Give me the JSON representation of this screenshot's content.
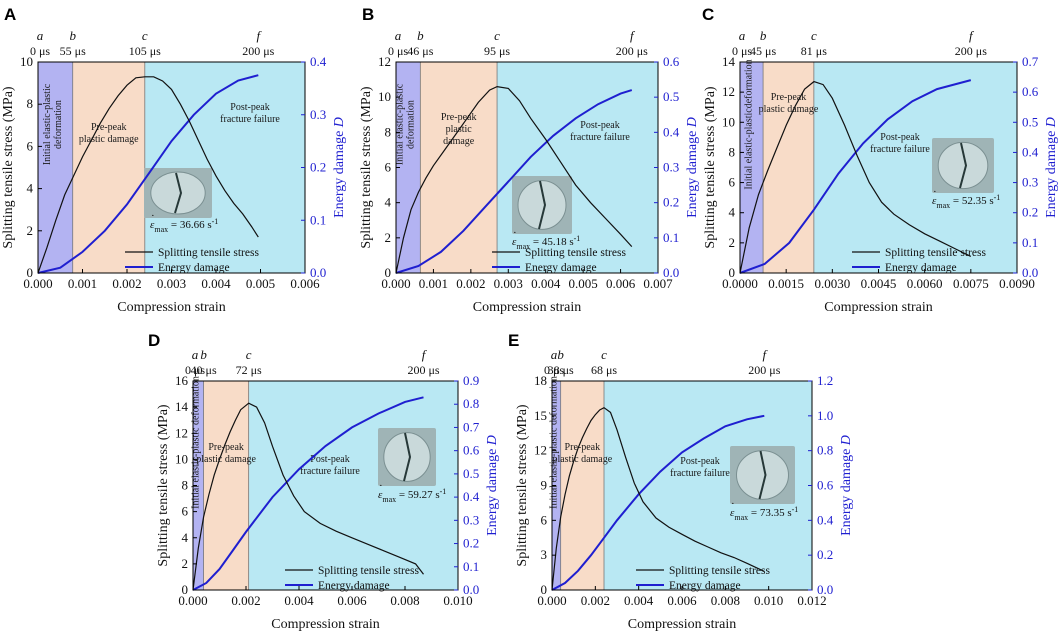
{
  "legend": {
    "stress": "Splitting tensile stress",
    "damage": "Energy damage"
  },
  "labels": {
    "xlabel": "Compression strain",
    "ylabel": "Splitting tensile stress (MPa)",
    "y2label": "Energy damage ",
    "y2italic": "D"
  },
  "colors": {
    "elastic": "#b3b3f2",
    "prepeak": "#f8dcc8",
    "postpeak": "#b9e8f3",
    "stress": "#111111",
    "damage": "#1f1fd0"
  },
  "chart_data": [
    {
      "panel": "A",
      "type": "line",
      "xlim": [
        0,
        0.006
      ],
      "xticks": [
        0,
        0.001,
        0.002,
        0.003,
        0.004,
        0.005,
        0.006
      ],
      "xtick_labels": [
        "0.000",
        "0.001",
        "0.002",
        "0.003",
        "0.004",
        "0.005",
        "0.006"
      ],
      "ylim": [
        0,
        10
      ],
      "yticks": [
        0,
        2,
        4,
        6,
        8,
        10
      ],
      "ytick_labels": [
        "0",
        "2",
        "4",
        "6",
        "8",
        "10"
      ],
      "y2lim": [
        0,
        0.4
      ],
      "y2ticks": [
        0,
        0.1,
        0.2,
        0.3,
        0.4
      ],
      "y2tick_labels": [
        "0.0",
        "0.1",
        "0.2",
        "0.3",
        "0.4"
      ],
      "phases": [
        {
          "letter": "a",
          "time": "0 μs",
          "strain": 0.0
        },
        {
          "letter": "b",
          "time": "55 μs",
          "strain": 0.00078
        },
        {
          "letter": "c",
          "time": "105 μs",
          "strain": 0.0024
        },
        {
          "letter": "f",
          "time": "200 μs",
          "strain": 0.00495
        }
      ],
      "regions": {
        "elastic": [
          "Initial elastic-plastic",
          "deformation"
        ],
        "prepeak": [
          "Pre-peak",
          "plastic damage"
        ],
        "postpeak": [
          "Post-peak",
          "fracture failure"
        ]
      },
      "strain_rate": "36.66",
      "stress_series": {
        "name": "Splitting tensile stress",
        "x": [
          0,
          0.0002,
          0.0004,
          0.0006,
          0.0008,
          0.001,
          0.0012,
          0.0014,
          0.0016,
          0.0018,
          0.002,
          0.0022,
          0.0024,
          0.0026,
          0.0028,
          0.003,
          0.0032,
          0.0034,
          0.0036,
          0.0038,
          0.004,
          0.0042,
          0.0044,
          0.0046,
          0.0048,
          0.00495
        ],
        "y": [
          0,
          1.2,
          2.5,
          3.7,
          4.6,
          5.5,
          6.3,
          7.1,
          7.8,
          8.4,
          8.9,
          9.25,
          9.3,
          9.3,
          9.1,
          8.7,
          8.0,
          7.2,
          6.3,
          5.4,
          4.6,
          3.9,
          3.3,
          2.8,
          2.2,
          1.7
        ]
      },
      "damage_series": {
        "name": "Energy damage",
        "x": [
          0,
          0.0005,
          0.001,
          0.0015,
          0.002,
          0.0025,
          0.003,
          0.0035,
          0.004,
          0.0045,
          0.00495
        ],
        "y": [
          0,
          0.01,
          0.04,
          0.08,
          0.13,
          0.19,
          0.25,
          0.3,
          0.34,
          0.365,
          0.375
        ]
      }
    },
    {
      "panel": "B",
      "type": "line",
      "xlim": [
        0,
        0.007
      ],
      "xticks": [
        0,
        0.001,
        0.002,
        0.003,
        0.004,
        0.005,
        0.006,
        0.007
      ],
      "xtick_labels": [
        "0.000",
        "0.001",
        "0.002",
        "0.003",
        "0.004",
        "0.005",
        "0.006",
        "0.007"
      ],
      "ylim": [
        0,
        12
      ],
      "yticks": [
        0,
        2,
        4,
        6,
        8,
        10,
        12
      ],
      "ytick_labels": [
        "0",
        "2",
        "4",
        "6",
        "8",
        "10",
        "12"
      ],
      "y2lim": [
        0,
        0.6
      ],
      "y2ticks": [
        0,
        0.1,
        0.2,
        0.3,
        0.4,
        0.5,
        0.6
      ],
      "y2tick_labels": [
        "0.0",
        "0.1",
        "0.2",
        "0.3",
        "0.4",
        "0.5",
        "0.6"
      ],
      "phases": [
        {
          "letter": "a",
          "time": "0 μs",
          "strain": 0.0
        },
        {
          "letter": "b",
          "time": "46 μs",
          "strain": 0.00065
        },
        {
          "letter": "c",
          "time": "95 μs",
          "strain": 0.0027
        },
        {
          "letter": "f",
          "time": "200 μs",
          "strain": 0.0063
        }
      ],
      "regions": {
        "elastic": [
          "Initial elastic-plastic",
          "deformation"
        ],
        "prepeak": [
          "Pre-peak",
          "plastic",
          "damage"
        ],
        "postpeak": [
          "Post-peak",
          "fracture failure"
        ]
      },
      "strain_rate": "45.18",
      "stress_series": {
        "name": "Splitting tensile stress",
        "x": [
          0,
          0.0002,
          0.0004,
          0.0006,
          0.0008,
          0.001,
          0.0013,
          0.0016,
          0.0019,
          0.0022,
          0.0025,
          0.0027,
          0.003,
          0.0033,
          0.0036,
          0.004,
          0.0044,
          0.0048,
          0.0052,
          0.0056,
          0.006,
          0.0063
        ],
        "y": [
          0,
          2.0,
          3.6,
          4.6,
          5.4,
          6.1,
          7.0,
          7.9,
          8.8,
          9.7,
          10.4,
          10.6,
          10.5,
          9.8,
          8.8,
          7.6,
          6.3,
          5.0,
          4.0,
          3.1,
          2.2,
          1.5
        ]
      },
      "damage_series": {
        "name": "Energy damage",
        "x": [
          0,
          0.0006,
          0.0012,
          0.0018,
          0.0024,
          0.003,
          0.0036,
          0.0042,
          0.0048,
          0.0054,
          0.006,
          0.0063
        ],
        "y": [
          0,
          0.02,
          0.06,
          0.12,
          0.19,
          0.26,
          0.33,
          0.39,
          0.44,
          0.48,
          0.51,
          0.52
        ]
      }
    },
    {
      "panel": "C",
      "type": "line",
      "xlim": [
        0,
        0.009
      ],
      "xticks": [
        0,
        0.0015,
        0.003,
        0.0045,
        0.006,
        0.0075,
        0.009
      ],
      "xtick_labels": [
        "0.0000",
        "0.0015",
        "0.0030",
        "0.0045",
        "0.0060",
        "0.0075",
        "0.0090"
      ],
      "ylim": [
        0,
        14
      ],
      "yticks": [
        0,
        2,
        4,
        6,
        8,
        10,
        12,
        14
      ],
      "ytick_labels": [
        "0",
        "2",
        "4",
        "6",
        "8",
        "10",
        "12",
        "14"
      ],
      "y2lim": [
        0,
        0.7
      ],
      "y2ticks": [
        0,
        0.1,
        0.2,
        0.3,
        0.4,
        0.5,
        0.6,
        0.7
      ],
      "y2tick_labels": [
        "0.0",
        "0.1",
        "0.2",
        "0.3",
        "0.4",
        "0.5",
        "0.6",
        "0.7"
      ],
      "phases": [
        {
          "letter": "a",
          "time": "0 μs",
          "strain": 0.0
        },
        {
          "letter": "b",
          "time": "45 μs",
          "strain": 0.00075
        },
        {
          "letter": "c",
          "time": "81 μs",
          "strain": 0.0024
        },
        {
          "letter": "f",
          "time": "200 μs",
          "strain": 0.0075
        }
      ],
      "regions": {
        "elastic": [
          "Initial elastic-plasticdeformation"
        ],
        "prepeak": [
          "Pre-peak",
          "plastic damage"
        ],
        "postpeak": [
          "Post-peak",
          "fracture failure"
        ]
      },
      "strain_rate": "52.35",
      "stress_series": {
        "name": "Splitting tensile stress",
        "x": [
          0,
          0.0003,
          0.0006,
          0.0009,
          0.0012,
          0.0015,
          0.0018,
          0.0021,
          0.0024,
          0.0027,
          0.003,
          0.0034,
          0.0038,
          0.0042,
          0.0046,
          0.005,
          0.0055,
          0.006,
          0.0065,
          0.007,
          0.0075
        ],
        "y": [
          0,
          3.0,
          5.2,
          6.8,
          8.3,
          9.8,
          11.1,
          12.2,
          12.7,
          12.5,
          11.6,
          9.8,
          7.8,
          6.0,
          4.7,
          3.9,
          3.2,
          2.6,
          2.1,
          1.6,
          1.1
        ]
      },
      "damage_series": {
        "name": "Energy damage",
        "x": [
          0,
          0.0008,
          0.0016,
          0.0024,
          0.0032,
          0.004,
          0.0048,
          0.0056,
          0.0064,
          0.0075
        ],
        "y": [
          0,
          0.03,
          0.1,
          0.21,
          0.33,
          0.43,
          0.51,
          0.57,
          0.61,
          0.64
        ]
      }
    },
    {
      "panel": "D",
      "type": "line",
      "xlim": [
        0,
        0.01
      ],
      "xticks": [
        0,
        0.002,
        0.004,
        0.006,
        0.008,
        0.01
      ],
      "xtick_labels": [
        "0.000",
        "0.002",
        "0.004",
        "0.006",
        "0.008",
        "0.010"
      ],
      "ylim": [
        0,
        16
      ],
      "yticks": [
        0,
        2,
        4,
        6,
        8,
        10,
        12,
        14,
        16
      ],
      "ytick_labels": [
        "0",
        "2",
        "4",
        "6",
        "8",
        "10",
        "12",
        "14",
        "16"
      ],
      "y2lim": [
        0,
        0.9
      ],
      "y2ticks": [
        0,
        0.1,
        0.2,
        0.3,
        0.4,
        0.5,
        0.6,
        0.7,
        0.8,
        0.9
      ],
      "y2tick_labels": [
        "0.0",
        "0.1",
        "0.2",
        "0.3",
        "0.4",
        "0.5",
        "0.6",
        "0.7",
        "0.8",
        "0.9"
      ],
      "phases": [
        {
          "letter": "a",
          "time": "0 μs",
          "strain": 0.0
        },
        {
          "letter": "b",
          "time": "40 μs",
          "strain": 0.0004
        },
        {
          "letter": "c",
          "time": "72 μs",
          "strain": 0.0021
        },
        {
          "letter": "f",
          "time": "200 μs",
          "strain": 0.0087
        }
      ],
      "regions": {
        "elastic": [
          "Initial elastic-plastic deformation"
        ],
        "prepeak": [
          "Pre-peak",
          "plastic damage"
        ],
        "postpeak": [
          "Post-peak",
          "fracture failure"
        ]
      },
      "strain_rate": "59.27",
      "stress_series": {
        "name": "Splitting tensile stress",
        "x": [
          0,
          0.0002,
          0.0004,
          0.0006,
          0.0008,
          0.001,
          0.0012,
          0.0014,
          0.0016,
          0.0018,
          0.0021,
          0.0024,
          0.0027,
          0.003,
          0.0034,
          0.0038,
          0.0042,
          0.0048,
          0.0054,
          0.006,
          0.0066,
          0.0072,
          0.0078,
          0.0084,
          0.0087
        ],
        "y": [
          0,
          3.2,
          5.6,
          7.3,
          8.8,
          10.0,
          11.1,
          12.1,
          13.0,
          13.8,
          14.3,
          14.0,
          12.8,
          11.0,
          8.8,
          7.2,
          6.0,
          5.1,
          4.5,
          4.0,
          3.5,
          3.0,
          2.5,
          2.0,
          1.2
        ]
      },
      "damage_series": {
        "name": "Energy damage",
        "x": [
          0,
          0.0005,
          0.001,
          0.0015,
          0.002,
          0.003,
          0.004,
          0.005,
          0.006,
          0.007,
          0.008,
          0.0087
        ],
        "y": [
          0,
          0.03,
          0.09,
          0.17,
          0.25,
          0.4,
          0.52,
          0.62,
          0.7,
          0.76,
          0.81,
          0.83
        ]
      }
    },
    {
      "panel": "E",
      "type": "line",
      "xlim": [
        0,
        0.012
      ],
      "xticks": [
        0,
        0.002,
        0.004,
        0.006,
        0.008,
        0.01,
        0.012
      ],
      "xtick_labels": [
        "0.000",
        "0.002",
        "0.004",
        "0.006",
        "0.008",
        "0.010",
        "0.012"
      ],
      "ylim": [
        0,
        18
      ],
      "yticks": [
        0,
        3,
        6,
        9,
        12,
        15,
        18
      ],
      "ytick_labels": [
        "0",
        "3",
        "6",
        "9",
        "12",
        "15",
        "18"
      ],
      "y2lim": [
        0,
        1.2
      ],
      "y2ticks": [
        0,
        0.2,
        0.4,
        0.6,
        0.8,
        1.0,
        1.2
      ],
      "y2tick_labels": [
        "0.0",
        "0.2",
        "0.4",
        "0.6",
        "0.8",
        "1.0",
        "1.2"
      ],
      "phases": [
        {
          "letter": "a",
          "time": "0 μs",
          "strain": 0.0
        },
        {
          "letter": "b",
          "time": "38 μs",
          "strain": 0.0004
        },
        {
          "letter": "c",
          "time": "68 μs",
          "strain": 0.0024
        },
        {
          "letter": "f",
          "time": "200 μs",
          "strain": 0.0098
        }
      ],
      "regions": {
        "elastic": [
          "Initial elastic-plastic deformation"
        ],
        "prepeak": [
          "Pre-peak",
          "plastic damage"
        ],
        "postpeak": [
          "Post-peak",
          "fracture failure"
        ]
      },
      "strain_rate": "73.35",
      "stress_series": {
        "name": "Splitting tensile stress",
        "x": [
          0,
          0.0002,
          0.0004,
          0.0006,
          0.0008,
          0.001,
          0.0012,
          0.0014,
          0.0016,
          0.0018,
          0.002,
          0.0022,
          0.0024,
          0.0027,
          0.003,
          0.0034,
          0.0038,
          0.0042,
          0.0048,
          0.0054,
          0.006,
          0.0066,
          0.0072,
          0.0078,
          0.0084,
          0.009,
          0.0098
        ],
        "y": [
          0,
          3.6,
          6.3,
          8.2,
          9.8,
          11.1,
          12.2,
          13.1,
          13.9,
          14.6,
          15.1,
          15.5,
          15.7,
          15.3,
          13.8,
          11.4,
          9.2,
          7.6,
          6.2,
          5.4,
          4.8,
          4.2,
          3.7,
          3.2,
          2.8,
          2.3,
          1.6
        ]
      },
      "damage_series": {
        "name": "Energy damage",
        "x": [
          0,
          0.0006,
          0.0012,
          0.0018,
          0.0024,
          0.003,
          0.004,
          0.005,
          0.006,
          0.007,
          0.008,
          0.009,
          0.0098
        ],
        "y": [
          0,
          0.04,
          0.11,
          0.2,
          0.3,
          0.4,
          0.55,
          0.68,
          0.79,
          0.87,
          0.94,
          0.98,
          1.0
        ]
      }
    }
  ]
}
